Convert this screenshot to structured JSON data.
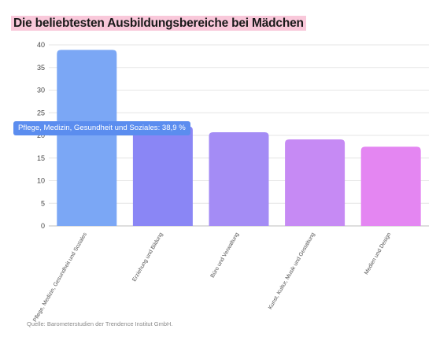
{
  "title": "Die beliebtesten Ausbildungsbereiche bei Mädchen",
  "source": "Quelle: Barometerstudien der Trendence Institut GmbH.",
  "tooltip": "Pflege, Medizin, Gesundheit und Soziales: 38,9 %",
  "chart_data": {
    "type": "bar",
    "title": "Die beliebtesten Ausbildungsbereiche bei Mädchen",
    "categories": [
      "Pflege, Medizin, Gesundheit und Soziales",
      "Erziehung und Bildung",
      "Büro und Verwaltung",
      "Kunst, Kultur, Musik und Gestaltung",
      "Medien und Design"
    ],
    "values": [
      38.9,
      22.0,
      20.7,
      19.1,
      17.5
    ],
    "ylim": [
      0,
      40
    ],
    "yticks": [
      0,
      5,
      10,
      15,
      20,
      25,
      30,
      35,
      40
    ],
    "grid": true,
    "colors": [
      "#7ba7f5",
      "#8a86f5",
      "#a48cf5",
      "#c68af4",
      "#e486f2"
    ]
  }
}
